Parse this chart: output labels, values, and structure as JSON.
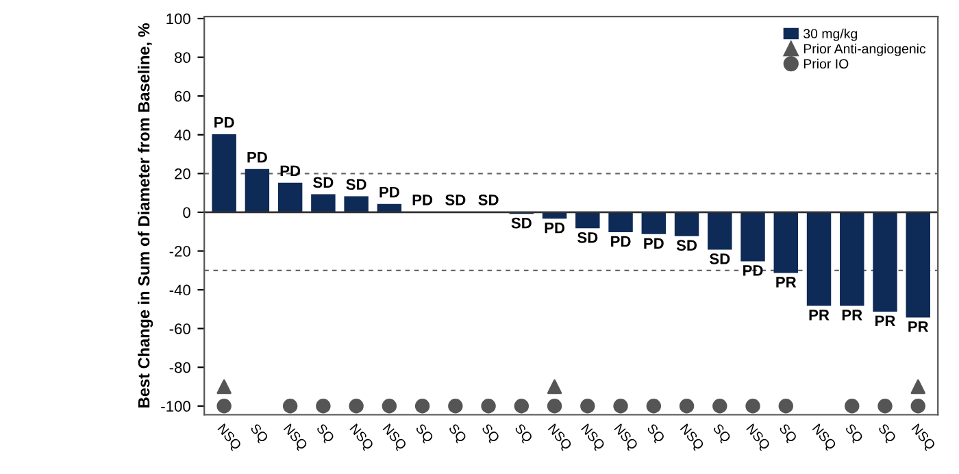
{
  "chart_data": {
    "type": "bar",
    "ylabel": "Best Change in Sum of Diameter from Baseline, %",
    "categories": [
      "NSQ",
      "SQ",
      "NSQ",
      "SQ",
      "NSQ",
      "NSQ",
      "SQ",
      "SQ",
      "SQ",
      "SQ",
      "NSQ",
      "NSQ",
      "NSQ",
      "SQ",
      "NSQ",
      "SQ",
      "NSQ",
      "SQ",
      "NSQ",
      "SQ",
      "SQ",
      "NSQ"
    ],
    "series": [
      {
        "name": "30 mg/kg",
        "color": "#0e2a57",
        "values": [
          40,
          22,
          15,
          9,
          8,
          4,
          0,
          0,
          0,
          -0.5,
          -3,
          -8,
          -10,
          -11,
          -12,
          -19,
          -25,
          -31,
          -48,
          -48,
          -51,
          -54
        ],
        "value_labels": [
          "PD",
          "PD",
          "PD",
          "SD",
          "SD",
          "PD",
          "PD",
          "SD",
          "SD",
          "SD",
          "PD",
          "SD",
          "PD",
          "PD",
          "SD",
          "SD",
          "PD",
          "PR",
          "PR",
          "PR",
          "PR",
          "PR"
        ]
      },
      {
        "name": "Prior Anti-angiogenic",
        "type": "scatter",
        "marker": "triangle",
        "color": "#555555",
        "values": [
          -90,
          null,
          null,
          null,
          null,
          null,
          null,
          null,
          null,
          null,
          -90,
          null,
          null,
          null,
          null,
          null,
          null,
          null,
          null,
          null,
          null,
          -90
        ]
      },
      {
        "name": "Prior IO",
        "type": "scatter",
        "marker": "circle",
        "color": "#555555",
        "values": [
          -100,
          null,
          -100,
          -100,
          -100,
          -100,
          -100,
          -100,
          -100,
          -100,
          -100,
          -100,
          -100,
          -100,
          -100,
          -100,
          -100,
          -100,
          null,
          -100,
          -100,
          -100
        ]
      }
    ],
    "ylim": [
      -104.5,
      101
    ],
    "yticks": [
      -100,
      -80,
      -60,
      -40,
      -20,
      0,
      20,
      40,
      60,
      80,
      100
    ],
    "ref_lines": [
      {
        "axis": "y",
        "value": 20,
        "line_style": "dashed",
        "color": "#666666"
      },
      {
        "axis": "y",
        "value": -30,
        "line_style": "dashed",
        "color": "#666666"
      }
    ],
    "legend": "top right",
    "grid": false
  }
}
